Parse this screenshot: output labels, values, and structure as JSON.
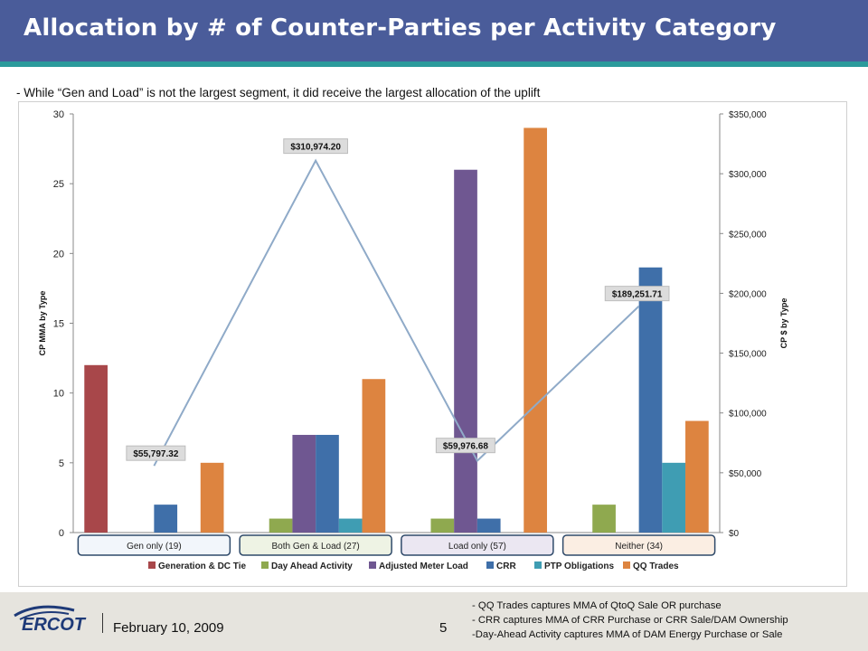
{
  "title": "Allocation by # of Counter-Parties per Activity Category",
  "subtitle": "- While “Gen and Load” is not the largest segment, it did receive the largest allocation of the uplift",
  "footer": {
    "logo_text": "ERCOT",
    "date": "February 10, 2009",
    "page_number": "5",
    "notes": [
      "- QQ Trades captures MMA of QtoQ Sale OR purchase",
      "- CRR  captures MMA of CRR Purchase or CRR Sale/DAM Ownership",
      "-Day-Ahead Activity  captures MMA of DAM Energy Purchase  or Sale"
    ]
  },
  "colors": {
    "title_bar": "#4a5c9a",
    "accent_bar": "#2b9a9b",
    "line": "#8faac8",
    "category_box_border": "#2f4a6a"
  },
  "chart_data": {
    "type": "bar",
    "categories": [
      "Gen only (19)",
      "Both Gen & Load (27)",
      "Load only (57)",
      "Neither (34)"
    ],
    "category_box_fills": [
      "#f2f6fb",
      "#eef3e4",
      "#ebe7f2",
      "#fbeee3"
    ],
    "series": [
      {
        "name": "Generation & DC Tie",
        "color": "#a8474a",
        "values": [
          12,
          0,
          0,
          0
        ]
      },
      {
        "name": "Day Ahead Activity",
        "color": "#8fa94f",
        "values": [
          0,
          1,
          1,
          2
        ]
      },
      {
        "name": "Adjusted Meter Load",
        "color": "#6f5791",
        "values": [
          0,
          7,
          26,
          0
        ]
      },
      {
        "name": "CRR",
        "color": "#3f6fa9",
        "values": [
          2,
          7,
          1,
          19
        ]
      },
      {
        "name": "PTP Obligations",
        "color": "#3f9db3",
        "values": [
          0,
          1,
          0,
          5
        ]
      },
      {
        "name": "QQ Trades",
        "color": "#dd8440",
        "values": [
          5,
          11,
          29,
          8
        ]
      }
    ],
    "line_series": {
      "values": [
        55797.32,
        310974.2,
        59976.68,
        189251.71
      ],
      "labels": [
        "$55,797.32",
        "$310,974.20",
        "$59,976.68",
        "$189,251.71"
      ]
    },
    "ylabel": "CP MMA by Type",
    "y2label": "CP $ by Type",
    "ylim": [
      0,
      30
    ],
    "y2lim": [
      0,
      350000
    ],
    "y_ticks": [
      0,
      5,
      10,
      15,
      20,
      25,
      30
    ],
    "y_tick_labels": [
      "0",
      "5",
      "10",
      "15",
      "20",
      "25",
      "30"
    ],
    "y2_ticks": [
      0,
      50000,
      100000,
      150000,
      200000,
      250000,
      300000,
      350000
    ],
    "y2_tick_labels": [
      "$0",
      "$50,000",
      "$100,000",
      "$150,000",
      "$200,000",
      "$250,000",
      "$300,000",
      "$350,000"
    ],
    "grid": false,
    "legend_position": "bottom"
  }
}
